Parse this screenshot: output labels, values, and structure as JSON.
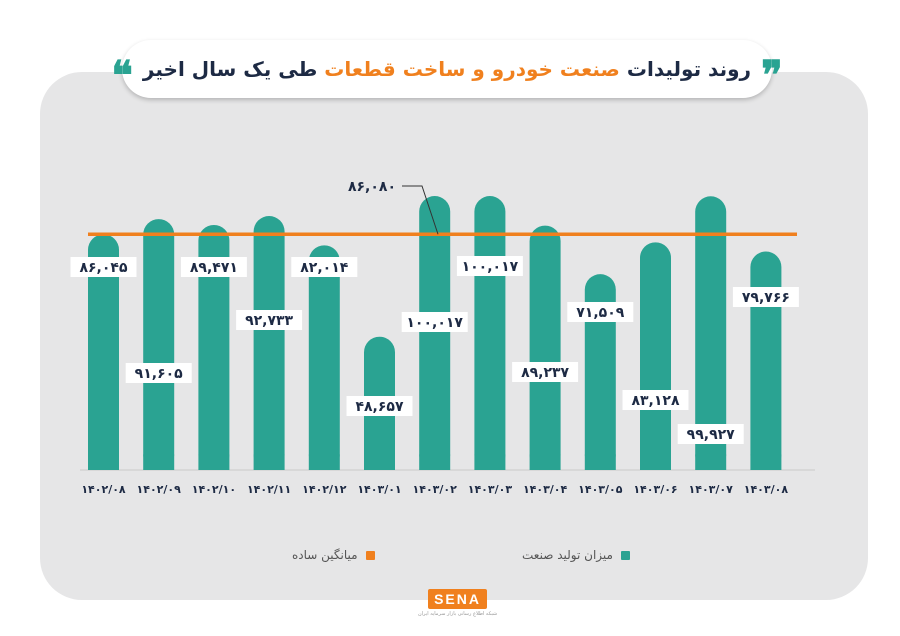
{
  "title": {
    "quote_open": "❞",
    "quote_close": "❝",
    "part1": "روند تولیدات",
    "part2": "صنعت خودرو و ساخت قطعات",
    "part3": "طی یک سال اخیر"
  },
  "colors": {
    "bar": "#2aa392",
    "average": "#f0801e",
    "panel": "#e6e6e7",
    "label_bg": "#ffffff"
  },
  "chart_data": {
    "type": "bar",
    "categories": [
      "۱۴۰۲/۰۸",
      "۱۴۰۲/۰۹",
      "۱۴۰۲/۱۰",
      "۱۴۰۲/۱۱",
      "۱۴۰۲/۱۲",
      "۱۴۰۳/۰۱",
      "۱۴۰۳/۰۲",
      "۱۴۰۳/۰۳",
      "۱۴۰۳/۰۴",
      "۱۴۰۳/۰۵",
      "۱۴۰۳/۰۶",
      "۱۴۰۳/۰۷",
      "۱۴۰۳/۰۸"
    ],
    "series": [
      {
        "name": "میزان تولید صنعت",
        "values": [
          86045,
          91605,
          89471,
          92733,
          82014,
          48657,
          100017,
          100017,
          89237,
          71509,
          83128,
          99927,
          79766
        ],
        "labels": [
          "۸۶,۰۴۵",
          "۹۱,۶۰۵",
          "۸۹,۴۷۱",
          "۹۲,۷۳۳",
          "۸۲,۰۱۴",
          "۴۸,۶۵۷",
          "۱۰۰,۰۱۷",
          "۱۰۰,۰۱۷",
          "۸۹,۲۳۷",
          "۷۱,۵۰۹",
          "۸۳,۱۲۸",
          "۹۹,۹۲۷",
          "۷۹,۷۶۶"
        ]
      }
    ],
    "average": {
      "name": "میانگین ساده",
      "value": 86080,
      "label": "۸۶,۰۸۰"
    },
    "ylim": [
      0,
      101500
    ]
  },
  "legend": {
    "bars": "میزان تولید صنعت",
    "average": "میانگین ساده"
  },
  "logo": {
    "text": "SENA",
    "subtitle": "شبکه اطلاع رسانی بازار سرمایه ایران"
  }
}
